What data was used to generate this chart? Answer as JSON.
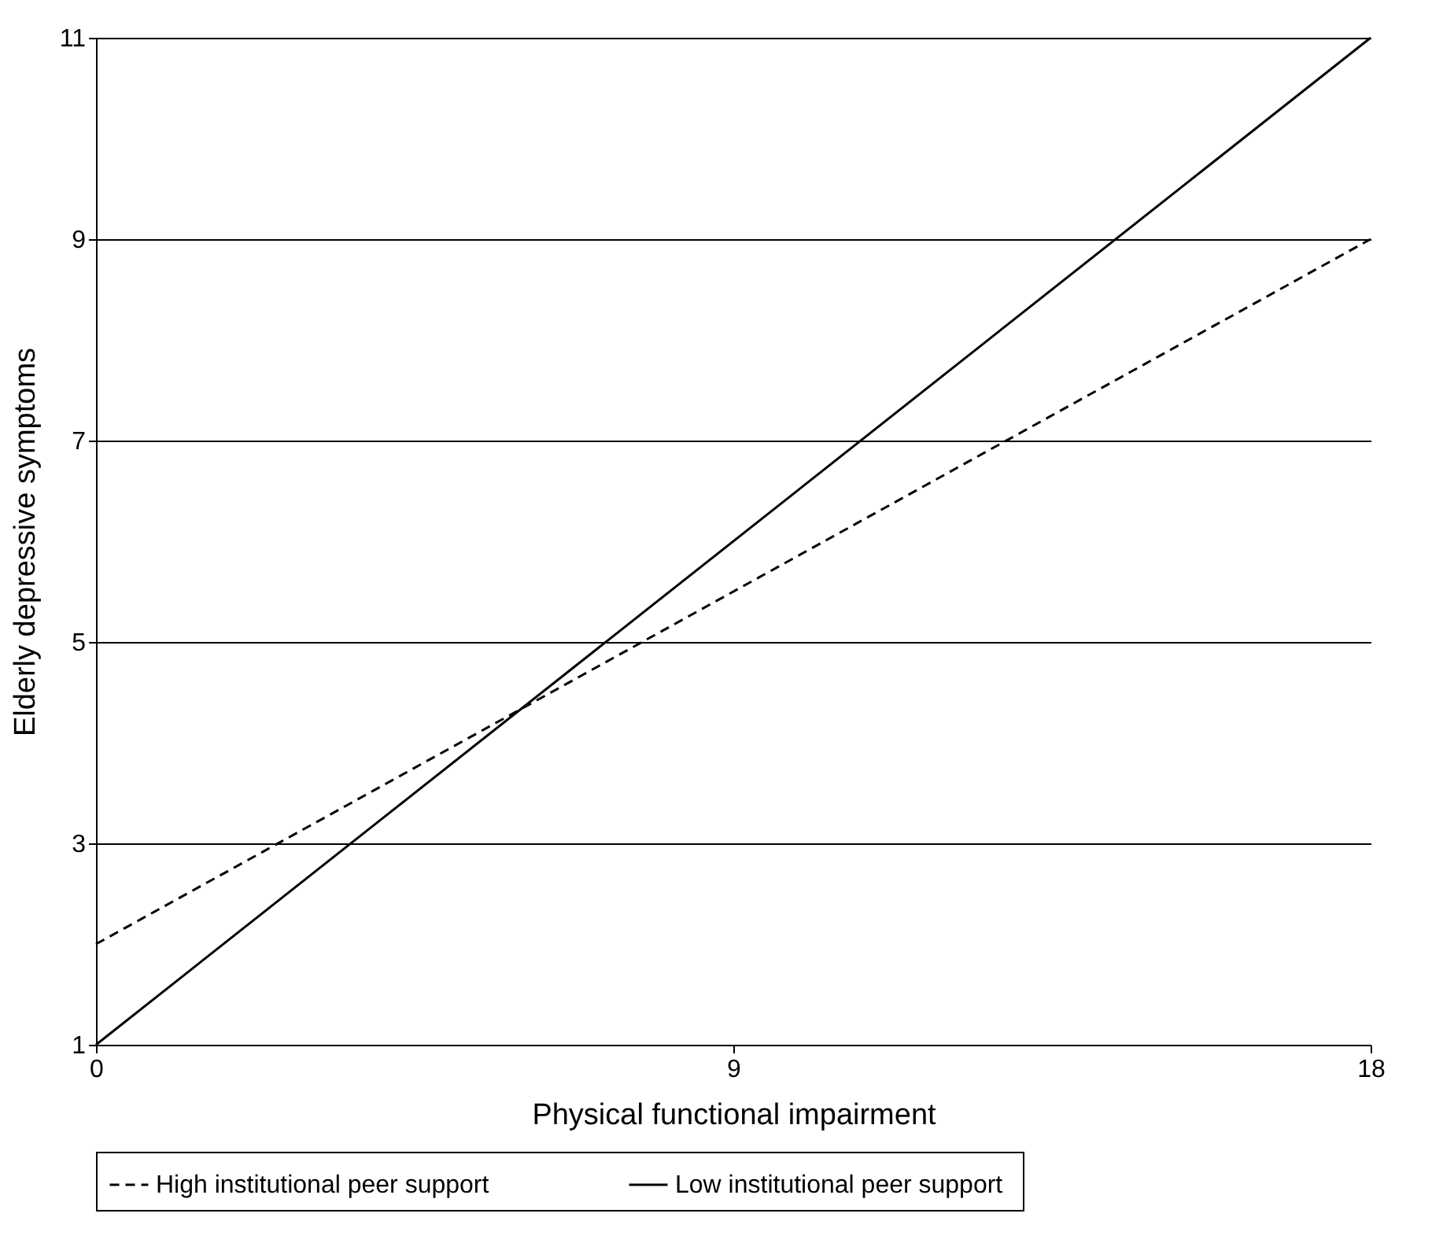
{
  "chart_data": {
    "type": "line",
    "xlabel": "Physical functional impairment",
    "ylabel": "Elderly  depressive symptoms",
    "x": [
      0,
      18
    ],
    "xlim": [
      0,
      18
    ],
    "xticks": [
      0,
      9,
      18
    ],
    "ylim": [
      1,
      11
    ],
    "yticks": [
      1,
      3,
      5,
      7,
      9,
      11
    ],
    "grid": "y",
    "legend": "bottom",
    "marker": "none",
    "series": [
      {
        "name": "High institutional peer  support",
        "color": "#000000",
        "line_style": "dashed",
        "values": [
          2,
          9
        ]
      },
      {
        "name": "Low institutional peer  support",
        "color": "#000000",
        "line_style": "solid",
        "values": [
          1,
          11
        ]
      }
    ]
  }
}
